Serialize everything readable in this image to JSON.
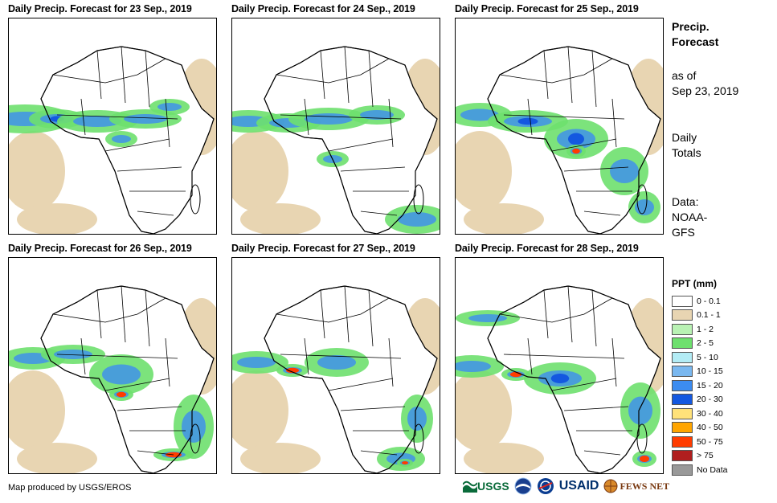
{
  "panels": [
    {
      "title": "Daily Precip. Forecast for 23 Sep., 2019"
    },
    {
      "title": "Daily Precip. Forecast for 24 Sep., 2019"
    },
    {
      "title": "Daily Precip. Forecast for 25 Sep., 2019"
    },
    {
      "title": "Daily Precip. Forecast for 26 Sep., 2019"
    },
    {
      "title": "Daily Precip. Forecast for 27 Sep., 2019"
    },
    {
      "title": "Daily Precip. Forecast for 28 Sep., 2019"
    }
  ],
  "side": {
    "heading1": "Precip.",
    "heading2": "Forecast",
    "asof1": "as of",
    "asof2": "Sep 23, 2019",
    "daily1": "Daily",
    "daily2": "Totals",
    "data1": "Data:",
    "data2": "NOAA-",
    "data3": "GFS"
  },
  "legend": {
    "title": "PPT (mm)",
    "items": [
      {
        "label": "0 - 0.1",
        "color": "#ffffff"
      },
      {
        "label": "0.1 - 1",
        "color": "#e8d5b2"
      },
      {
        "label": "1 - 2",
        "color": "#b9f2b4"
      },
      {
        "label": "2 - 5",
        "color": "#6ee06e"
      },
      {
        "label": "5 - 10",
        "color": "#b3ecf5"
      },
      {
        "label": "10 - 15",
        "color": "#7ab8f0"
      },
      {
        "label": "15 - 20",
        "color": "#3c8cf0"
      },
      {
        "label": "20 - 30",
        "color": "#1458e0"
      },
      {
        "label": "30 - 40",
        "color": "#ffe27a"
      },
      {
        "label": "40 - 50",
        "color": "#ffa500"
      },
      {
        "label": "50 - 75",
        "color": "#ff3c00"
      },
      {
        "label": "> 75",
        "color": "#b01e1e"
      },
      {
        "label": "No Data",
        "color": "#999999"
      }
    ]
  },
  "credit": "Map produced by USGS/EROS",
  "logos": {
    "usgs": "USGS",
    "usaid": "USAID",
    "fews": "FEWS NET"
  }
}
